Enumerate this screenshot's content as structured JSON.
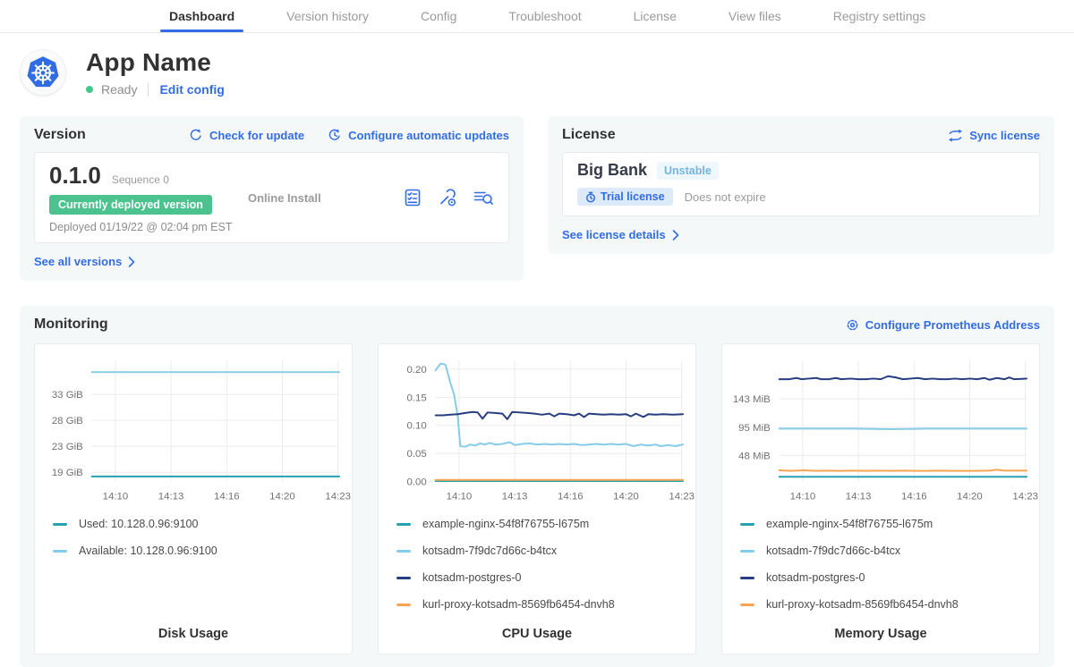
{
  "nav": {
    "tabs": [
      {
        "label": "Dashboard",
        "active": true
      },
      {
        "label": "Version history"
      },
      {
        "label": "Config"
      },
      {
        "label": "Troubleshoot"
      },
      {
        "label": "License"
      },
      {
        "label": "View files"
      },
      {
        "label": "Registry settings"
      }
    ]
  },
  "app": {
    "name": "App Name",
    "status": "Ready",
    "edit_config": "Edit config",
    "logo_icon": "kubernetes-icon"
  },
  "version": {
    "title": "Version",
    "check_for_update": "Check for update",
    "configure_auto_updates": "Configure automatic updates",
    "current_version": "0.1.0",
    "sequence": "Sequence 0",
    "deployed_badge": "Currently deployed version",
    "deployed_at": "Deployed 01/19/22 @ 02:04 pm EST",
    "install_type": "Online Install",
    "action_icons": [
      "preflight-checklist-icon",
      "config-wrench-gear-icon",
      "view-logs-icon"
    ],
    "see_all": "See all versions"
  },
  "license": {
    "title": "License",
    "sync": "Sync license",
    "customer": "Big Bank",
    "channel_badge": "Unstable",
    "type_badge": "Trial license",
    "type_icon": "stopwatch-icon",
    "expiry": "Does not expire",
    "see_details": "See license details"
  },
  "monitoring": {
    "title": "Monitoring",
    "configure_prometheus": "Configure Prometheus Address",
    "charts": [
      {
        "type": "line",
        "title": "Disk Usage",
        "ylim": [
          18.2,
          41.5
        ],
        "y_ticks": [
          {
            "label": "33 GiB",
            "v": 35
          },
          {
            "label": "28 GiB",
            "v": 30
          },
          {
            "label": "23 GiB",
            "v": 25
          },
          {
            "label": "19 GiB",
            "v": 20
          }
        ],
        "x_ticks": [
          "14:10",
          "14:13",
          "14:16",
          "14:20",
          "14:23"
        ],
        "series": [
          {
            "name": "Used: 10.128.0.96:9100",
            "color": "#25a2b0",
            "points": [
              [
                0,
                19.2
              ],
              [
                1,
                19.2
              ]
            ]
          },
          {
            "name": "Available: 10.128.0.96:9100",
            "color": "#85cbea",
            "points": [
              [
                0,
                39.3
              ],
              [
                1,
                39.3
              ]
            ]
          }
        ]
      },
      {
        "type": "line",
        "title": "CPU Usage",
        "ylim": [
          0,
          0.215
        ],
        "y_ticks": [
          {
            "label": "0.20",
            "v": 0.2
          },
          {
            "label": "0.15",
            "v": 0.15
          },
          {
            "label": "0.10",
            "v": 0.1
          },
          {
            "label": "0.05",
            "v": 0.05
          },
          {
            "label": "0.00",
            "v": 0.0
          }
        ],
        "x_ticks": [
          "14:10",
          "14:13",
          "14:16",
          "14:20",
          "14:23"
        ],
        "series": [
          {
            "name": "example-nginx-54f8f76755-l675m",
            "color": "#25a2b0",
            "points": [
              [
                0,
                0.001
              ],
              [
                1,
                0.001
              ]
            ]
          },
          {
            "name": "kotsadm-7f9dc7d66c-b4tcx",
            "color": "#85cbea",
            "points": [
              [
                0,
                0.198
              ],
              [
                0.02,
                0.21
              ],
              [
                0.04,
                0.208
              ],
              [
                0.06,
                0.175
              ],
              [
                0.075,
                0.155
              ],
              [
                0.09,
                0.115
              ],
              [
                0.1,
                0.063
              ],
              [
                0.12,
                0.062
              ],
              [
                0.14,
                0.066
              ],
              [
                0.16,
                0.064
              ],
              [
                0.18,
                0.068
              ],
              [
                0.2,
                0.066
              ],
              [
                0.22,
                0.069
              ],
              [
                0.24,
                0.066
              ],
              [
                0.27,
                0.067
              ],
              [
                0.3,
                0.07
              ],
              [
                0.32,
                0.065
              ],
              [
                0.35,
                0.067
              ],
              [
                0.38,
                0.068
              ],
              [
                0.41,
                0.066
              ],
              [
                0.44,
                0.067
              ],
              [
                0.47,
                0.066
              ],
              [
                0.5,
                0.067
              ],
              [
                0.53,
                0.066
              ],
              [
                0.56,
                0.067
              ],
              [
                0.59,
                0.065
              ],
              [
                0.62,
                0.066
              ],
              [
                0.65,
                0.067
              ],
              [
                0.68,
                0.066
              ],
              [
                0.71,
                0.067
              ],
              [
                0.74,
                0.066
              ],
              [
                0.77,
                0.067
              ],
              [
                0.8,
                0.063
              ],
              [
                0.83,
                0.066
              ],
              [
                0.86,
                0.064
              ],
              [
                0.89,
                0.066
              ],
              [
                0.91,
                0.063
              ],
              [
                0.94,
                0.065
              ],
              [
                0.97,
                0.063
              ],
              [
                1,
                0.066
              ]
            ]
          },
          {
            "name": "kotsadm-postgres-0",
            "color": "#263e7f",
            "points": [
              [
                0,
                0.118
              ],
              [
                0.03,
                0.118
              ],
              [
                0.06,
                0.119
              ],
              [
                0.09,
                0.12
              ],
              [
                0.12,
                0.122
              ],
              [
                0.15,
                0.124
              ],
              [
                0.17,
                0.123
              ],
              [
                0.19,
                0.112
              ],
              [
                0.21,
                0.123
              ],
              [
                0.24,
                0.122
              ],
              [
                0.27,
                0.121
              ],
              [
                0.29,
                0.111
              ],
              [
                0.31,
                0.124
              ],
              [
                0.34,
                0.123
              ],
              [
                0.37,
                0.122
              ],
              [
                0.4,
                0.121
              ],
              [
                0.43,
                0.119
              ],
              [
                0.46,
                0.121
              ],
              [
                0.48,
                0.116
              ],
              [
                0.5,
                0.121
              ],
              [
                0.53,
                0.12
              ],
              [
                0.56,
                0.118
              ],
              [
                0.58,
                0.121
              ],
              [
                0.6,
                0.115
              ],
              [
                0.62,
                0.121
              ],
              [
                0.65,
                0.12
              ],
              [
                0.68,
                0.119
              ],
              [
                0.71,
                0.12
              ],
              [
                0.74,
                0.119
              ],
              [
                0.77,
                0.12
              ],
              [
                0.79,
                0.116
              ],
              [
                0.81,
                0.121
              ],
              [
                0.84,
                0.115
              ],
              [
                0.86,
                0.12
              ],
              [
                0.89,
                0.119
              ],
              [
                0.92,
                0.12
              ],
              [
                0.96,
                0.119
              ],
              [
                1,
                0.12
              ]
            ]
          },
          {
            "name": "kurl-proxy-kotsadm-8569fb6454-dnvh8",
            "color": "#f9a452",
            "points": [
              [
                0,
                0.003
              ],
              [
                1,
                0.003
              ]
            ]
          }
        ]
      },
      {
        "type": "line",
        "title": "Memory Usage",
        "ylim": [
          4,
          207
        ],
        "y_ticks": [
          {
            "label": "143 MiB",
            "v": 143
          },
          {
            "label": "95 MiB",
            "v": 95
          },
          {
            "label": "48 MiB",
            "v": 48
          }
        ],
        "x_ticks": [
          "14:10",
          "14:13",
          "14:16",
          "14:20",
          "14:23"
        ],
        "series": [
          {
            "name": "example-nginx-54f8f76755-l675m",
            "color": "#25a2b0",
            "points": [
              [
                0,
                12
              ],
              [
                1,
                12
              ]
            ]
          },
          {
            "name": "kotsadm-7f9dc7d66c-b4tcx",
            "color": "#85cbea",
            "points": [
              [
                0,
                93
              ],
              [
                0.3,
                93
              ],
              [
                0.45,
                92
              ],
              [
                0.6,
                93
              ],
              [
                1,
                93
              ]
            ]
          },
          {
            "name": "kotsadm-postgres-0",
            "color": "#263e7f",
            "points": [
              [
                0,
                176
              ],
              [
                0.04,
                176
              ],
              [
                0.07,
                178
              ],
              [
                0.09,
                176
              ],
              [
                0.12,
                177
              ],
              [
                0.15,
                178
              ],
              [
                0.17,
                176
              ],
              [
                0.2,
                176
              ],
              [
                0.23,
                178
              ],
              [
                0.25,
                176
              ],
              [
                0.29,
                177
              ],
              [
                0.32,
                176
              ],
              [
                0.35,
                176
              ],
              [
                0.38,
                177
              ],
              [
                0.41,
                176
              ],
              [
                0.44,
                181
              ],
              [
                0.47,
                179
              ],
              [
                0.5,
                176
              ],
              [
                0.53,
                177
              ],
              [
                0.56,
                178
              ],
              [
                0.59,
                176
              ],
              [
                0.62,
                177
              ],
              [
                0.65,
                176
              ],
              [
                0.68,
                176
              ],
              [
                0.71,
                177
              ],
              [
                0.74,
                176
              ],
              [
                0.77,
                177
              ],
              [
                0.8,
                176
              ],
              [
                0.83,
                178
              ],
              [
                0.85,
                175
              ],
              [
                0.88,
                178
              ],
              [
                0.91,
                176
              ],
              [
                0.93,
                179
              ],
              [
                0.95,
                176
              ],
              [
                1,
                177
              ]
            ]
          },
          {
            "name": "kurl-proxy-kotsadm-8569fb6454-dnvh8",
            "color": "#f9a452",
            "points": [
              [
                0,
                23
              ],
              [
                0.05,
                22
              ],
              [
                0.1,
                23
              ],
              [
                0.15,
                22
              ],
              [
                0.2,
                22.5
              ],
              [
                0.25,
                22
              ],
              [
                0.3,
                22.5
              ],
              [
                0.35,
                22
              ],
              [
                0.4,
                22.5
              ],
              [
                0.45,
                22
              ],
              [
                0.5,
                22.5
              ],
              [
                0.55,
                22
              ],
              [
                0.6,
                22
              ],
              [
                0.65,
                22.5
              ],
              [
                0.7,
                22
              ],
              [
                0.75,
                22
              ],
              [
                0.8,
                22
              ],
              [
                0.85,
                22.5
              ],
              [
                0.88,
                24
              ],
              [
                0.91,
                22.5
              ],
              [
                0.95,
                22.5
              ],
              [
                1,
                22.5
              ]
            ]
          }
        ]
      }
    ]
  },
  "colors": {
    "link_blue": "#326de6",
    "badge_green": "#4cc38e",
    "card_bg": "#f5f8f9",
    "teal": "#25a2b0",
    "light_blue": "#85cbea",
    "navy": "#263e7f",
    "orange": "#f9a452"
  }
}
